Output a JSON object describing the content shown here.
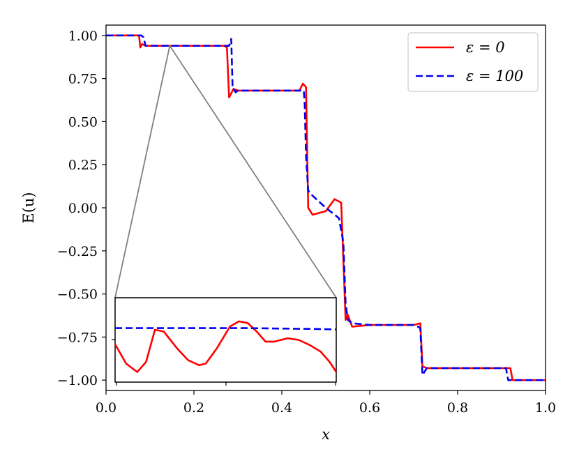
{
  "chart_data": {
    "type": "line",
    "xlabel": "x",
    "ylabel": "E(u)",
    "xlim": [
      0.0,
      1.0
    ],
    "ylim": [
      -1.06,
      1.06
    ],
    "x_ticks": [
      "0.0",
      "0.2",
      "0.4",
      "0.6",
      "0.8",
      "1.0"
    ],
    "y_ticks": [
      "1.00",
      "0.75",
      "0.50",
      "0.25",
      "0.00",
      "−0.25",
      "−0.50",
      "−0.75",
      "−1.00"
    ],
    "grid": false,
    "legend_position": "top-right",
    "series": [
      {
        "name": "ε = 0",
        "color": "#ff0000",
        "style": "solid",
        "x": [
          0.0,
          0.075,
          0.078,
          0.082,
          0.09,
          0.2,
          0.27,
          0.275,
          0.28,
          0.29,
          0.3,
          0.4,
          0.44,
          0.448,
          0.455,
          0.46,
          0.47,
          0.5,
          0.52,
          0.535,
          0.54,
          0.545,
          0.55,
          0.56,
          0.6,
          0.7,
          0.715,
          0.72,
          0.73,
          0.8,
          0.9,
          0.92,
          0.925,
          0.93,
          1.0
        ],
        "y": [
          1.0,
          1.0,
          0.93,
          0.95,
          0.94,
          0.94,
          0.94,
          0.93,
          0.64,
          0.69,
          0.68,
          0.68,
          0.68,
          0.72,
          0.7,
          0.0,
          -0.04,
          -0.02,
          0.05,
          0.03,
          -0.3,
          -0.65,
          -0.62,
          -0.69,
          -0.68,
          -0.68,
          -0.67,
          -0.92,
          -0.93,
          -0.93,
          -0.93,
          -0.93,
          -1.0,
          -1.0,
          -1.0
        ]
      },
      {
        "name": "ε = 100",
        "color": "#0000ee",
        "style": "dashed",
        "x": [
          0.0,
          0.08,
          0.085,
          0.09,
          0.2,
          0.28,
          0.285,
          0.288,
          0.295,
          0.3,
          0.4,
          0.45,
          0.452,
          0.455,
          0.46,
          0.47,
          0.5,
          0.53,
          0.54,
          0.545,
          0.55,
          0.56,
          0.6,
          0.7,
          0.71,
          0.715,
          0.72,
          0.73,
          0.8,
          0.9,
          0.91,
          0.915,
          0.92,
          1.0
        ],
        "y": [
          1.0,
          1.0,
          0.99,
          0.94,
          0.94,
          0.94,
          0.98,
          0.7,
          0.67,
          0.68,
          0.68,
          0.68,
          0.6,
          0.3,
          0.1,
          0.07,
          0.0,
          -0.06,
          -0.2,
          -0.55,
          -0.65,
          -0.67,
          -0.68,
          -0.68,
          -0.69,
          -0.7,
          -0.97,
          -0.93,
          -0.93,
          -0.93,
          -0.93,
          -1.0,
          -1.0,
          -1.0
        ]
      }
    ],
    "inset": {
      "zoom_center_x": 0.145,
      "zoom_value": 0.94,
      "series": [
        {
          "name": "ε = 0",
          "color": "#ff0000",
          "x": [
            0.0,
            0.05,
            0.1,
            0.14,
            0.18,
            0.22,
            0.28,
            0.33,
            0.38,
            0.41,
            0.46,
            0.52,
            0.56,
            0.6,
            0.64,
            0.68,
            0.72,
            0.78,
            0.83,
            0.88,
            0.93,
            0.97,
            1.0
          ],
          "y": [
            0.45,
            0.22,
            0.12,
            0.24,
            0.62,
            0.6,
            0.4,
            0.26,
            0.2,
            0.22,
            0.4,
            0.66,
            0.72,
            0.7,
            0.6,
            0.48,
            0.48,
            0.52,
            0.5,
            0.44,
            0.36,
            0.24,
            0.12
          ]
        },
        {
          "name": "ε = 100",
          "color": "#0000ee",
          "x": [
            0.0,
            0.3,
            0.6,
            0.9,
            1.0
          ],
          "y": [
            0.64,
            0.64,
            0.64,
            0.63,
            0.625
          ]
        }
      ]
    }
  }
}
